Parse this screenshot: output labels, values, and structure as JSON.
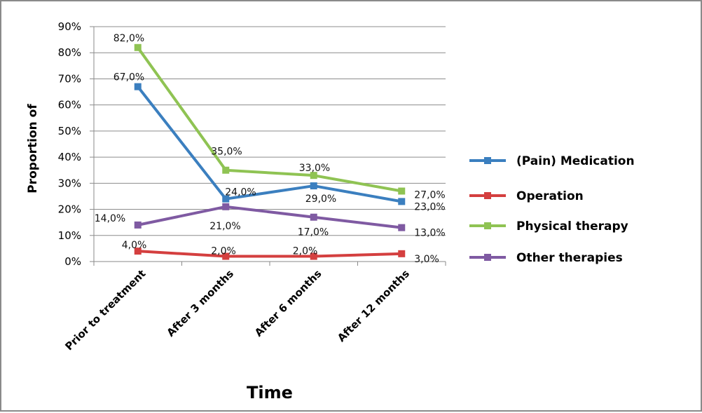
{
  "chart_data": {
    "type": "line",
    "categories": [
      "Prior to treatment",
      "After 3 months",
      "After 6 months",
      "After 12 months"
    ],
    "series": [
      {
        "name": "(Pain) Medication",
        "color": "#3b7fbf",
        "values": [
          67.0,
          24.0,
          29.0,
          23.0
        ],
        "labels": [
          "67,0%",
          "24,0%",
          "29,0%",
          "23,0%"
        ]
      },
      {
        "name": "Operation",
        "color": "#d43f3f",
        "values": [
          4.0,
          2.0,
          2.0,
          3.0
        ],
        "labels": [
          "4,0%",
          "2,0%",
          "2,0%",
          "3,0%"
        ]
      },
      {
        "name": "Physical therapy",
        "color": "#8fc353",
        "values": [
          82.0,
          35.0,
          33.0,
          27.0
        ],
        "labels": [
          "82,0%",
          "35,0%",
          "33,0%",
          "27,0%"
        ]
      },
      {
        "name": "Other therapies",
        "color": "#7f5aa2",
        "values": [
          14.0,
          21.0,
          17.0,
          13.0
        ],
        "labels": [
          "14,0%",
          "21,0%",
          "17,0%",
          "13,0%"
        ]
      }
    ],
    "yticks": [
      "0%",
      "10%",
      "20%",
      "30%",
      "40%",
      "50%",
      "60%",
      "70%",
      "80%",
      "90%"
    ],
    "ylim": [
      0,
      90
    ],
    "xlabel": "Time",
    "ylabel": "Proportion of",
    "grid": true,
    "legend_position": "right"
  }
}
